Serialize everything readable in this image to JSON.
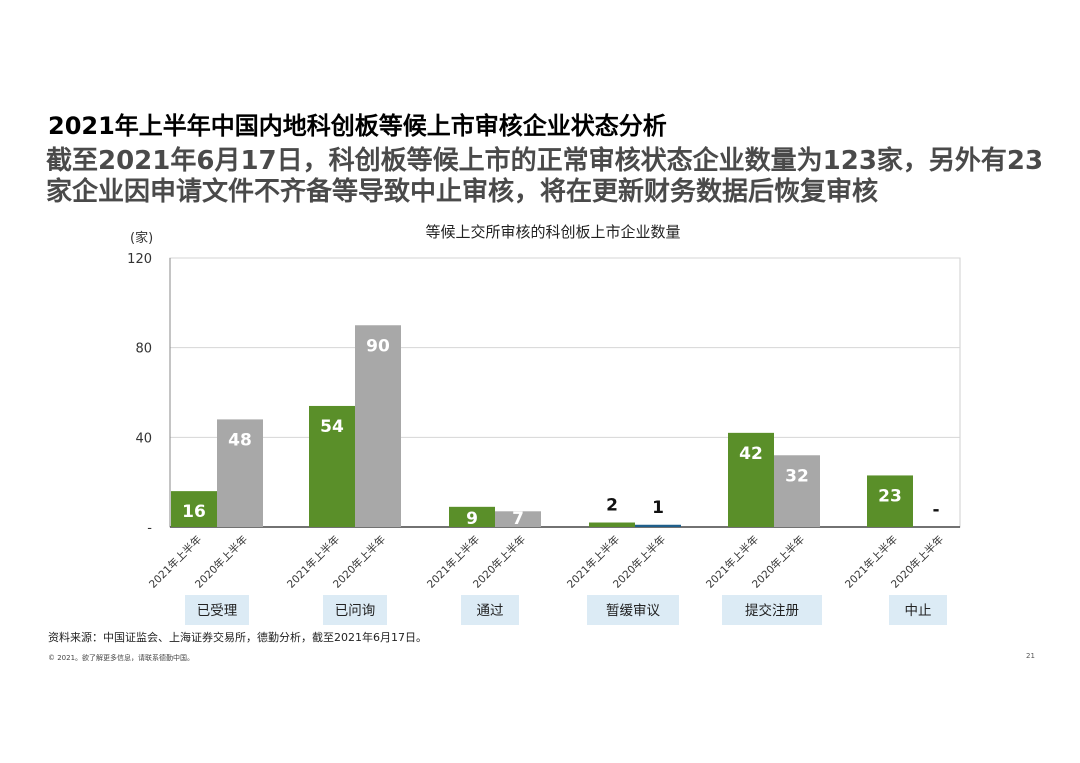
{
  "header": {
    "title": "2021年上半年中国内地科创板等候上市审核企业状态分析",
    "subtitle_line1": "截至2021年6月17日，科创板等候上市的正常审核状态企业数量为123家，另外有23",
    "subtitle_line2": "家企业因申请文件不齐备等导致中止审核，将在更新财务数据后恢复审核"
  },
  "chart_data": {
    "type": "bar",
    "title": "等候上交所审核的科创板上市企业数量",
    "ylabel": "(家)",
    "ylim": [
      0,
      120
    ],
    "yticks": [
      "120",
      "80",
      "40",
      "-"
    ],
    "grid": true,
    "groups": [
      "已受理",
      "已问询",
      "通过",
      "暂缓审议",
      "提交注册",
      "中止"
    ],
    "period_labels": [
      "2021年上半年",
      "2020年上半年"
    ],
    "series": [
      {
        "name": "2021年上半年",
        "color": "#5a8f29",
        "values": [
          16,
          54,
          9,
          2,
          42,
          23
        ],
        "labels": [
          "16",
          "54",
          "9",
          "2",
          "42",
          "23"
        ]
      },
      {
        "name": "2020年上半年",
        "color": "#a8a8a8",
        "values": [
          48,
          90,
          7,
          1,
          32,
          0
        ],
        "labels": [
          "48",
          "90",
          "7",
          "1",
          "32",
          "-"
        ]
      }
    ],
    "special_bar_colors": {
      "暂缓审议-2020年上半年": "#1f5f8b"
    }
  },
  "footer": {
    "source": "资料来源：中国证监会、上海证券交易所，德勤分析，截至2021年6月17日。",
    "copyright": "© 2021。欲了解更多信息，请联系德勤中国。",
    "page_number": "21"
  }
}
